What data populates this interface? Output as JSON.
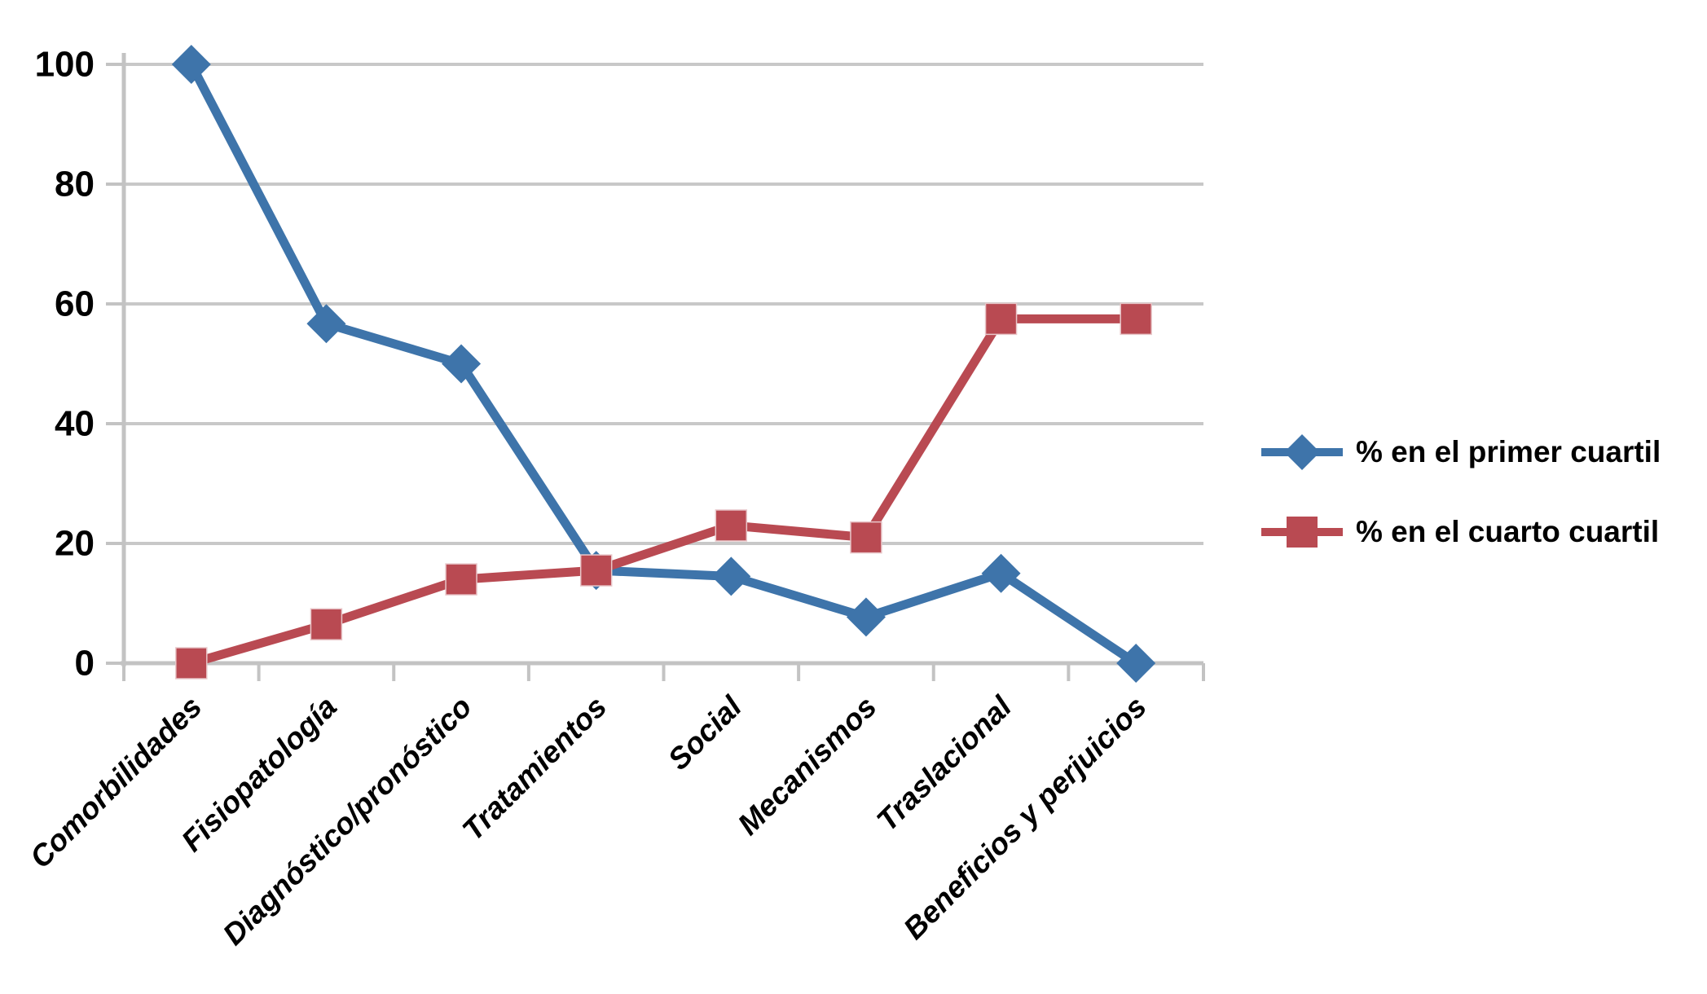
{
  "chart_data": {
    "type": "line",
    "title": "",
    "xlabel": "",
    "ylabel": "",
    "categories": [
      "Comorbilidades",
      "Fisiopatología",
      "Diagnóstico/pronóstico",
      "Tratamientos",
      "Social",
      "Mecanismos",
      "Traslacional",
      "Beneficios y perjuicios"
    ],
    "series": [
      {
        "name": "% en el primer cuartil",
        "marker": "diamond",
        "color": "#3E74AA",
        "values": [
          100,
          56.7,
          50,
          15.5,
          14.5,
          7.7,
          15,
          0
        ]
      },
      {
        "name": "% en el cuarto cuartil",
        "marker": "square",
        "color": "#B94A52",
        "values": [
          0,
          6.5,
          14,
          15.5,
          23,
          21,
          57.5,
          57.5
        ]
      }
    ],
    "ylim": [
      0,
      100
    ],
    "yticks": [
      0,
      20,
      40,
      60,
      80,
      100
    ],
    "grid": "horizontal-only",
    "legend_position": "right-middle"
  },
  "colors": {
    "series1": "#3E74AA",
    "series2": "#B94A52",
    "gridline": "#C8C8C8",
    "axis": "#C3C3C3",
    "text": "#000000",
    "background": "#FFFFFF"
  }
}
